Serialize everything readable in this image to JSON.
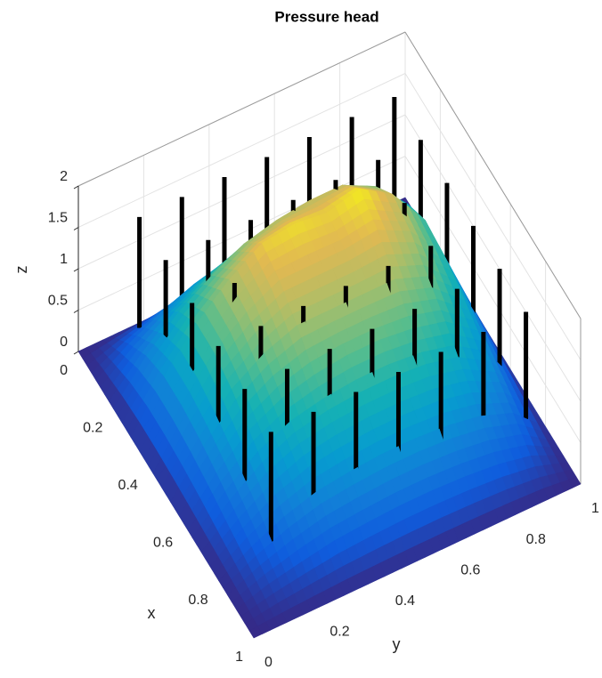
{
  "chart_data": {
    "type": "surface",
    "title": "Pressure head",
    "x_label": "x",
    "y_label": "y",
    "z_label": "z",
    "x": [
      0,
      0.1,
      0.2,
      0.3,
      0.4,
      0.5,
      0.6,
      0.7,
      0.8,
      0.9,
      1
    ],
    "y": [
      0,
      0.1,
      0.2,
      0.3,
      0.4,
      0.5,
      0.6,
      0.7,
      0.8,
      0.9,
      1
    ],
    "z": [
      [
        0,
        0,
        0,
        0,
        0,
        0,
        0,
        0,
        0,
        0,
        0
      ],
      [
        0,
        0.25,
        0.45,
        0.6,
        0.7,
        0.75,
        0.75,
        0.7,
        0.6,
        0.4,
        0
      ],
      [
        0,
        0.45,
        0.8,
        1.05,
        1.25,
        1.35,
        1.4,
        1.4,
        1.2,
        0.8,
        0
      ],
      [
        0,
        0.55,
        1.0,
        1.35,
        1.6,
        1.65,
        1.6,
        1.7,
        1.45,
        0.95,
        0
      ],
      [
        0,
        0.55,
        1.0,
        1.3,
        1.5,
        1.5,
        1.5,
        1.55,
        1.35,
        0.9,
        0
      ],
      [
        0,
        0.5,
        0.9,
        1.15,
        1.3,
        1.3,
        1.3,
        1.3,
        1.15,
        0.8,
        0
      ],
      [
        0,
        0.42,
        0.75,
        0.95,
        1.05,
        1.1,
        1.1,
        1.05,
        0.95,
        0.65,
        0
      ],
      [
        0,
        0.32,
        0.58,
        0.75,
        0.82,
        0.85,
        0.85,
        0.82,
        0.72,
        0.5,
        0
      ],
      [
        0,
        0.22,
        0.4,
        0.52,
        0.57,
        0.6,
        0.6,
        0.57,
        0.5,
        0.35,
        0
      ],
      [
        0,
        0.12,
        0.2,
        0.27,
        0.3,
        0.32,
        0.32,
        0.3,
        0.26,
        0.18,
        0
      ],
      [
        0,
        0,
        0,
        0,
        0,
        0,
        0,
        0,
        0,
        0,
        0
      ]
    ],
    "xlim": [
      0,
      1
    ],
    "ylim": [
      0,
      1
    ],
    "zlim": [
      0,
      2
    ],
    "xticks": [
      0,
      0.2,
      0.4,
      0.6,
      0.8,
      1
    ],
    "yticks": [
      0,
      0.2,
      0.4,
      0.6,
      0.8,
      1
    ],
    "zticks": [
      0,
      0.5,
      1,
      1.5,
      2
    ],
    "clim": [
      0,
      1.75
    ],
    "grid": true,
    "rods": {
      "color": "#000000",
      "x": [
        0.05,
        0.05,
        0.05,
        0.05,
        0.05,
        0.05,
        0.05,
        0.2,
        0.2,
        0.2,
        0.2,
        0.2,
        0.2,
        0.2,
        0.35,
        0.35,
        0.35,
        0.35,
        0.35,
        0.35,
        0.35,
        0.5,
        0.5,
        0.5,
        0.5,
        0.5,
        0.5,
        0.5,
        0.65,
        0.65,
        0.65,
        0.65,
        0.65,
        0.65,
        0.65,
        0.8,
        0.8,
        0.8,
        0.8,
        0.8,
        0.8,
        0.8
      ],
      "y": [
        0.16,
        0.29,
        0.42,
        0.55,
        0.68,
        0.81,
        0.94,
        0.16,
        0.29,
        0.42,
        0.55,
        0.68,
        0.81,
        0.94,
        0.16,
        0.29,
        0.42,
        0.55,
        0.68,
        0.81,
        0.94,
        0.16,
        0.29,
        0.42,
        0.55,
        0.68,
        0.81,
        0.94,
        0.16,
        0.29,
        0.42,
        0.55,
        0.68,
        0.81,
        0.94,
        0.16,
        0.29,
        0.42,
        0.55,
        0.68,
        0.81,
        0.94
      ],
      "z": [
        0,
        1.5
      ]
    }
  }
}
